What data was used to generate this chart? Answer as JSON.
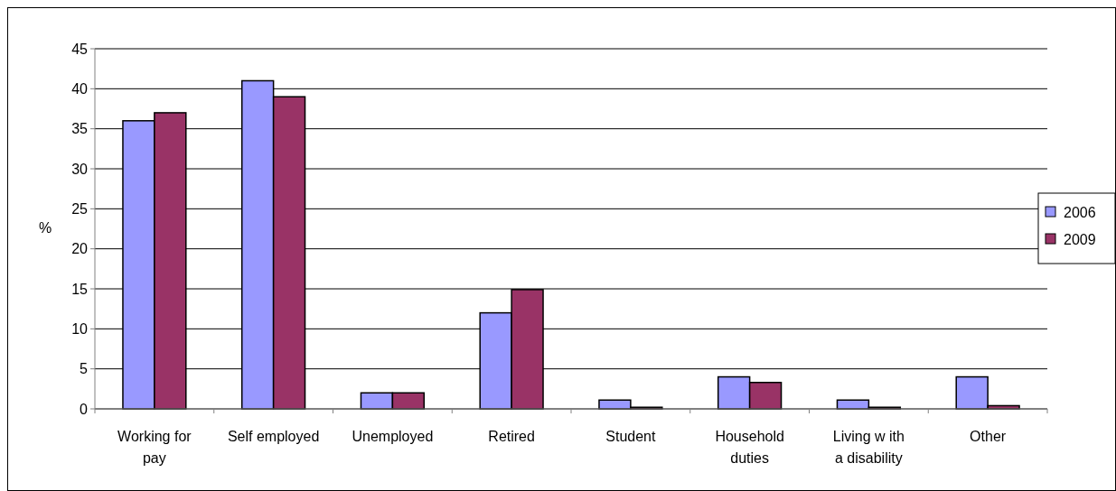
{
  "chart_data": {
    "type": "bar",
    "ylabel": "%",
    "categories": [
      "Working for pay",
      "Self employed",
      "Unemployed",
      "Retired",
      "Student",
      "Household duties",
      "Living w ith a disability",
      "Other"
    ],
    "series": [
      {
        "name": "2006",
        "color": "#9999ff",
        "values": [
          36,
          41,
          2,
          12,
          1.1,
          4,
          1.1,
          4
        ]
      },
      {
        "name": "2009",
        "color": "#993366",
        "values": [
          37,
          39,
          2,
          14.9,
          0.2,
          3.3,
          0.2,
          0.4
        ]
      }
    ],
    "ylim": [
      0,
      45
    ],
    "yticks": [
      0,
      5,
      10,
      15,
      20,
      25,
      30,
      35,
      40,
      45
    ],
    "grid": "y",
    "legend": "right"
  }
}
